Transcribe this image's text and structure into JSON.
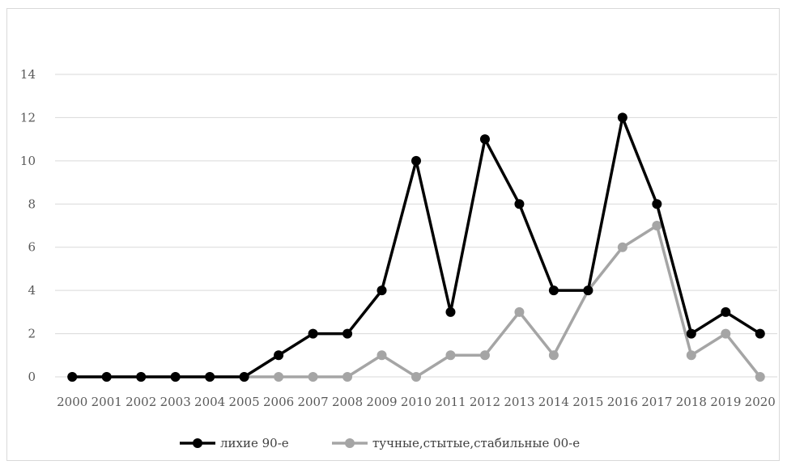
{
  "chart_data": {
    "type": "line",
    "title": "",
    "xlabel": "",
    "ylabel": "",
    "ylim": [
      0,
      14
    ],
    "yticks": [
      0,
      2,
      4,
      6,
      8,
      10,
      12,
      14
    ],
    "grid": true,
    "legend_position": "bottom",
    "categories": [
      "2000",
      "2001",
      "2002",
      "2003",
      "2004",
      "2005",
      "2006",
      "2007",
      "2008",
      "2009",
      "2010",
      "2011",
      "2012",
      "2013",
      "2014",
      "2015",
      "2016",
      "2017",
      "2018",
      "2019",
      "2020"
    ],
    "series": [
      {
        "name": "лихие 90-е",
        "color": "#000000",
        "values": [
          0,
          0,
          0,
          0,
          0,
          0,
          1,
          2,
          2,
          4,
          10,
          3,
          11,
          8,
          4,
          4,
          12,
          8,
          2,
          3,
          2
        ]
      },
      {
        "name": "тучные,стытые,стабильные 00-е",
        "color": "#a5a5a5",
        "values": [
          0,
          0,
          0,
          0,
          0,
          0,
          0,
          0,
          0,
          1,
          0,
          1,
          1,
          3,
          1,
          4,
          6,
          7,
          1,
          2,
          0
        ]
      }
    ]
  }
}
